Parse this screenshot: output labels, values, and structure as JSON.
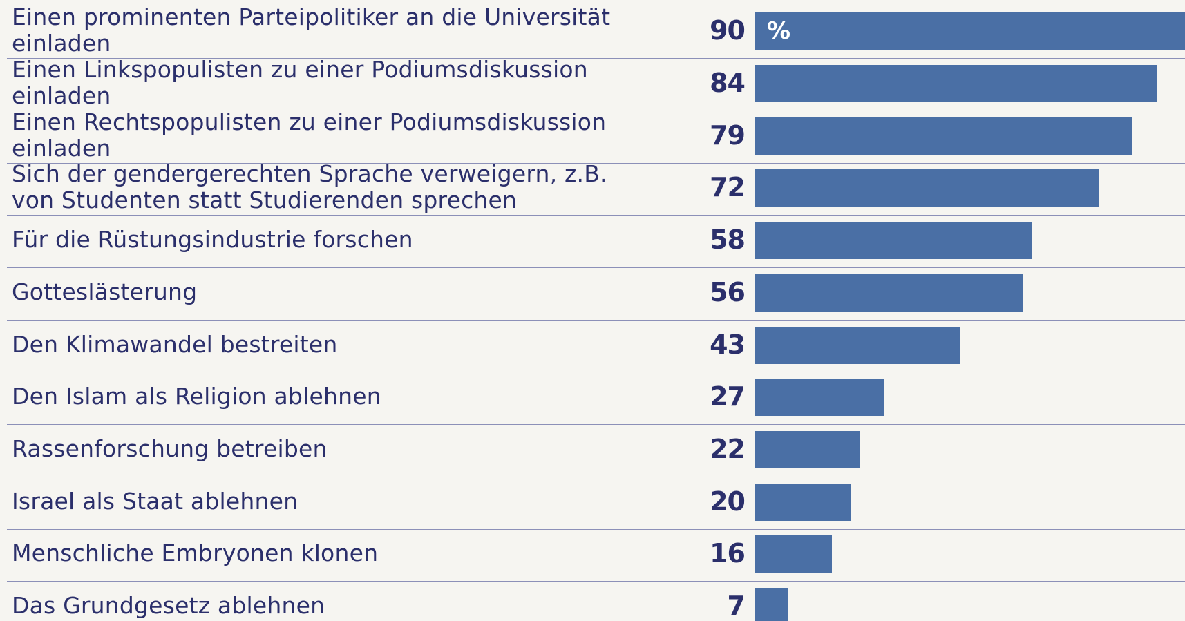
{
  "chart_data": {
    "type": "bar",
    "orientation": "horizontal",
    "categories": [
      "Einen prominenten Parteipolitiker an die Universität\neinladen",
      "Einen Linkspopulisten zu einer Podiumsdiskussion\neinladen",
      "Einen Rechtspopulisten zu einer Podiumsdiskussion\neinladen",
      "Sich der gendergerechten Sprache verweigern, z.B.\nvon Studenten statt Studierenden sprechen",
      "Für die Rüstungsindustrie forschen",
      "Gotteslästerung",
      "Den Klimawandel bestreiten",
      "Den Islam als Religion ablehnen",
      "Rassenforschung betreiben",
      "Israel als Staat ablehnen",
      "Menschliche Embryonen klonen",
      "Das Grundgesetz ablehnen"
    ],
    "values": [
      90,
      84,
      79,
      72,
      58,
      56,
      43,
      27,
      22,
      20,
      16,
      7
    ],
    "unit": "%",
    "color": "#4a6fa5",
    "xlim": [
      0,
      90
    ]
  }
}
